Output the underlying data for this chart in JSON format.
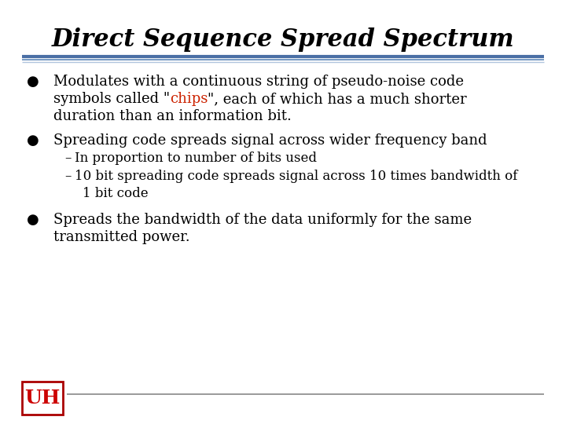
{
  "title": "Direct Sequence Spread Spectrum",
  "title_fontsize": 22,
  "bg_color": "#ffffff",
  "text_color": "#000000",
  "chips_color": "#cc2200",
  "font_size": 13,
  "sub_font_size": 12,
  "sep_color1": "#4a6fa5",
  "sep_color2": "#7a9cc5",
  "sep_color3": "#b0c4de",
  "footer_line_color": "#888888",
  "bullet1_l1": "Modulates with a continuous string of pseudo-noise code",
  "bullet1_l2_pre": "symbols called \"",
  "bullet1_chips": "chips",
  "bullet1_l2_post": "\", each of which has a much shorter",
  "bullet1_l3": "duration than an information bit.",
  "bullet2_l1": "Spreading code spreads signal across wider frequency band",
  "sub1": "In proportion to number of bits used",
  "sub2_l1": "10 bit spreading code spreads signal across 10 times bandwidth of",
  "sub2_l2": "1 bit code",
  "bullet3_l1": "Spreads the bandwidth of the data uniformly for the same",
  "bullet3_l2": "transmitted power."
}
